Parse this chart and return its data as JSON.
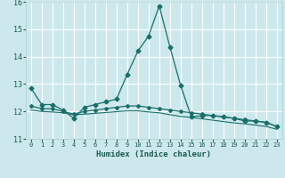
{
  "xlabel": "Humidex (Indice chaleur)",
  "ylabel": "",
  "background_color": "#cce8ec",
  "grid_color": "#ffffff",
  "line_color": "#1a6e6a",
  "xlim": [
    -0.5,
    23.5
  ],
  "ylim": [
    11,
    16
  ],
  "yticks": [
    11,
    12,
    13,
    14,
    15,
    16
  ],
  "xticks": [
    0,
    1,
    2,
    3,
    4,
    5,
    6,
    7,
    8,
    9,
    10,
    11,
    12,
    13,
    14,
    15,
    16,
    17,
    18,
    19,
    20,
    21,
    22,
    23
  ],
  "series1_x": [
    0,
    1,
    2,
    3,
    4,
    5,
    6,
    7,
    8,
    9,
    10,
    11,
    12,
    13,
    14,
    15,
    16,
    17,
    18,
    19,
    20,
    21,
    22,
    23
  ],
  "series1_y": [
    12.85,
    12.25,
    12.25,
    12.05,
    11.75,
    12.15,
    12.25,
    12.35,
    12.45,
    13.35,
    14.2,
    14.75,
    15.85,
    14.35,
    12.95,
    11.8,
    11.85,
    11.85,
    11.8,
    11.75,
    11.65,
    11.65,
    11.6,
    11.45
  ],
  "series2_x": [
    0,
    1,
    2,
    3,
    4,
    5,
    6,
    7,
    8,
    9,
    10,
    11,
    12,
    13,
    14,
    15,
    16,
    17,
    18,
    19,
    20,
    21,
    22,
    23
  ],
  "series2_y": [
    12.2,
    12.1,
    12.1,
    12.0,
    11.9,
    12.0,
    12.05,
    12.1,
    12.15,
    12.2,
    12.2,
    12.15,
    12.1,
    12.05,
    12.0,
    11.95,
    11.9,
    11.85,
    11.8,
    11.75,
    11.7,
    11.65,
    11.6,
    11.45
  ],
  "series3_x": [
    0,
    1,
    2,
    3,
    4,
    5,
    6,
    7,
    8,
    9,
    10,
    11,
    12,
    13,
    14,
    15,
    16,
    17,
    18,
    19,
    20,
    21,
    22,
    23
  ],
  "series3_y": [
    12.05,
    12.0,
    11.98,
    11.95,
    11.88,
    11.9,
    11.93,
    11.96,
    11.99,
    12.02,
    12.02,
    11.98,
    11.95,
    11.88,
    11.82,
    11.78,
    11.73,
    11.68,
    11.63,
    11.58,
    11.55,
    11.5,
    11.45,
    11.35
  ]
}
